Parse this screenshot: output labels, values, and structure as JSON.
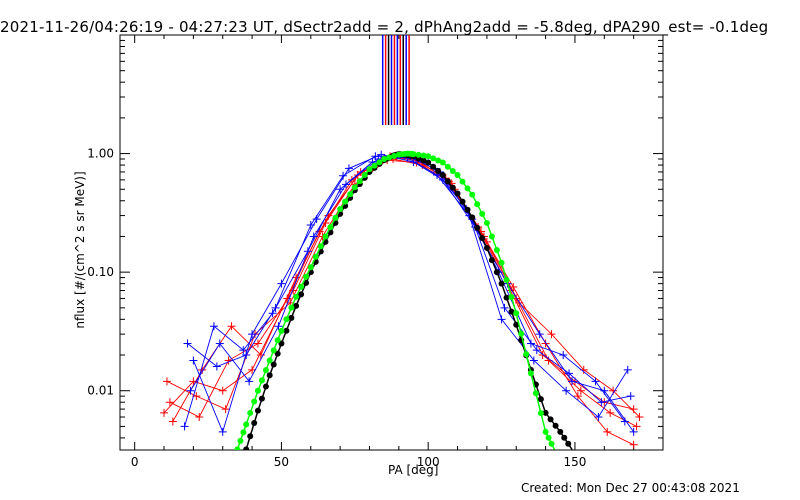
{
  "title": "2021-11-26/04:26:19 - 04:27:23 UT, dSectr2add = 2, dPhAng2add = -5.8deg, dPA290_est= -0.1deg",
  "created": "Created: Mon Dec 27 00:43:08 2021",
  "chart_data": {
    "type": "line",
    "xlabel": "PA [deg]",
    "ylabel": "nflux [#/(cm^2 s sr MeV)]",
    "xlim": [
      -5,
      180
    ],
    "ylim_log10": [
      -2.5,
      1.0
    ],
    "yscale": "log",
    "x_ticks": [
      0,
      50,
      100,
      150
    ],
    "x_tick_labels": [
      "0",
      "50",
      "100",
      "150"
    ],
    "y_ticks": [
      0.01,
      0.1,
      1.0
    ],
    "y_tick_labels": [
      "0.01",
      "0.10",
      "1.00"
    ],
    "series": [
      {
        "name": "red-1",
        "color": "#ff0000",
        "x": [
          10,
          20,
          30,
          40,
          52,
          63,
          74,
          85,
          95,
          106,
          117,
          128,
          139,
          150,
          160,
          170
        ],
        "y": [
          0.0065,
          0.012,
          0.01,
          0.015,
          0.06,
          0.22,
          0.6,
          0.92,
          0.9,
          0.62,
          0.24,
          0.07,
          0.02,
          0.012,
          0.008,
          0.007
        ]
      },
      {
        "name": "red-2",
        "color": "#ff0000",
        "x": [
          12,
          22,
          32,
          42,
          54,
          65,
          76,
          87,
          97,
          108,
          119,
          130,
          141,
          152,
          162,
          171
        ],
        "y": [
          0.008,
          0.006,
          0.018,
          0.025,
          0.07,
          0.26,
          0.66,
          0.95,
          0.86,
          0.56,
          0.2,
          0.06,
          0.018,
          0.01,
          0.0065,
          0.005
        ]
      },
      {
        "name": "red-3",
        "color": "#ff0000",
        "x": [
          11,
          21,
          31,
          41,
          53,
          64,
          75,
          86,
          96,
          107,
          118,
          129,
          140,
          151,
          161,
          170
        ],
        "y": [
          0.012,
          0.009,
          0.007,
          0.03,
          0.055,
          0.2,
          0.55,
          0.88,
          0.84,
          0.58,
          0.22,
          0.075,
          0.025,
          0.009,
          0.0045,
          0.0035
        ]
      },
      {
        "name": "red-4",
        "color": "#ff0000",
        "x": [
          13,
          23,
          33,
          43,
          55,
          66,
          77,
          88,
          98,
          109,
          120,
          131,
          142,
          153,
          163,
          172
        ],
        "y": [
          0.0055,
          0.015,
          0.035,
          0.02,
          0.09,
          0.3,
          0.7,
          0.9,
          0.8,
          0.5,
          0.18,
          0.055,
          0.03,
          0.015,
          0.01,
          0.006
        ]
      },
      {
        "name": "blue-1",
        "color": "#0000ff",
        "x": [
          18,
          28,
          38,
          48,
          60,
          71,
          82,
          93,
          103,
          114,
          125,
          136,
          147,
          158,
          168
        ],
        "y": [
          0.025,
          0.016,
          0.02,
          0.05,
          0.25,
          0.65,
          0.95,
          0.92,
          0.66,
          0.3,
          0.04,
          0.018,
          0.01,
          0.006,
          0.015
        ]
      },
      {
        "name": "blue-2",
        "color": "#0000ff",
        "x": [
          19,
          29,
          39,
          49,
          61,
          72,
          83,
          94,
          104,
          115,
          126,
          137,
          148,
          159,
          169
        ],
        "y": [
          0.01,
          0.025,
          0.012,
          0.035,
          0.2,
          0.55,
          0.9,
          0.95,
          0.7,
          0.28,
          0.05,
          0.022,
          0.014,
          0.008,
          0.009
        ]
      },
      {
        "name": "blue-3",
        "color": "#0000ff",
        "x": [
          20,
          30,
          40,
          50,
          62,
          73,
          84,
          95,
          105,
          116,
          127,
          138,
          149,
          160,
          170
        ],
        "y": [
          0.018,
          0.0045,
          0.03,
          0.08,
          0.28,
          0.75,
          0.98,
          0.85,
          0.6,
          0.24,
          0.08,
          0.03,
          0.012,
          0.01,
          0.0045
        ]
      },
      {
        "name": "blue-4",
        "color": "#0000ff",
        "x": [
          17,
          27,
          37,
          47,
          59,
          70,
          81,
          92,
          102,
          113,
          124,
          135,
          146,
          157,
          167
        ],
        "y": [
          0.005,
          0.035,
          0.022,
          0.045,
          0.15,
          0.5,
          0.85,
          0.97,
          0.75,
          0.34,
          0.1,
          0.025,
          0.02,
          0.012,
          0.0055
        ]
      },
      {
        "name": "black-fit",
        "color": "#000000",
        "x": [
          38,
          42,
          46,
          50,
          55,
          60,
          65,
          70,
          75,
          80,
          85,
          88,
          90,
          92,
          95,
          100,
          105,
          110,
          115,
          120,
          125,
          130,
          135,
          140,
          145,
          149
        ],
        "y": [
          0.0032,
          0.0068,
          0.0135,
          0.025,
          0.052,
          0.1,
          0.18,
          0.31,
          0.49,
          0.7,
          0.88,
          0.96,
          0.99,
          0.98,
          0.95,
          0.84,
          0.66,
          0.46,
          0.29,
          0.16,
          0.08,
          0.036,
          0.015,
          0.0065,
          0.0045,
          0.0032
        ]
      },
      {
        "name": "green-fit",
        "color": "#00ff00",
        "x": [
          35,
          38,
          42,
          46,
          50,
          55,
          60,
          65,
          70,
          75,
          80,
          85,
          90,
          93,
          95,
          100,
          105,
          110,
          115,
          120,
          125,
          130,
          135,
          140,
          143
        ],
        "y": [
          0.0032,
          0.0052,
          0.01,
          0.018,
          0.032,
          0.062,
          0.11,
          0.2,
          0.34,
          0.52,
          0.74,
          0.9,
          0.98,
          1.0,
          0.99,
          0.95,
          0.84,
          0.66,
          0.45,
          0.26,
          0.12,
          0.045,
          0.014,
          0.0045,
          0.0032
        ]
      }
    ],
    "top_marker_lines": {
      "x": [
        84.5,
        85.5,
        86.5,
        87.5,
        88.5,
        89.5,
        90.5,
        91.5,
        92.5,
        93.5
      ],
      "colors": [
        "#0000ff",
        "#ff0000",
        "#000000",
        "#0000ff",
        "#ff0000",
        "#0000ff",
        "#ff0000",
        "#000000",
        "#0000ff",
        "#ff0000"
      ]
    }
  }
}
